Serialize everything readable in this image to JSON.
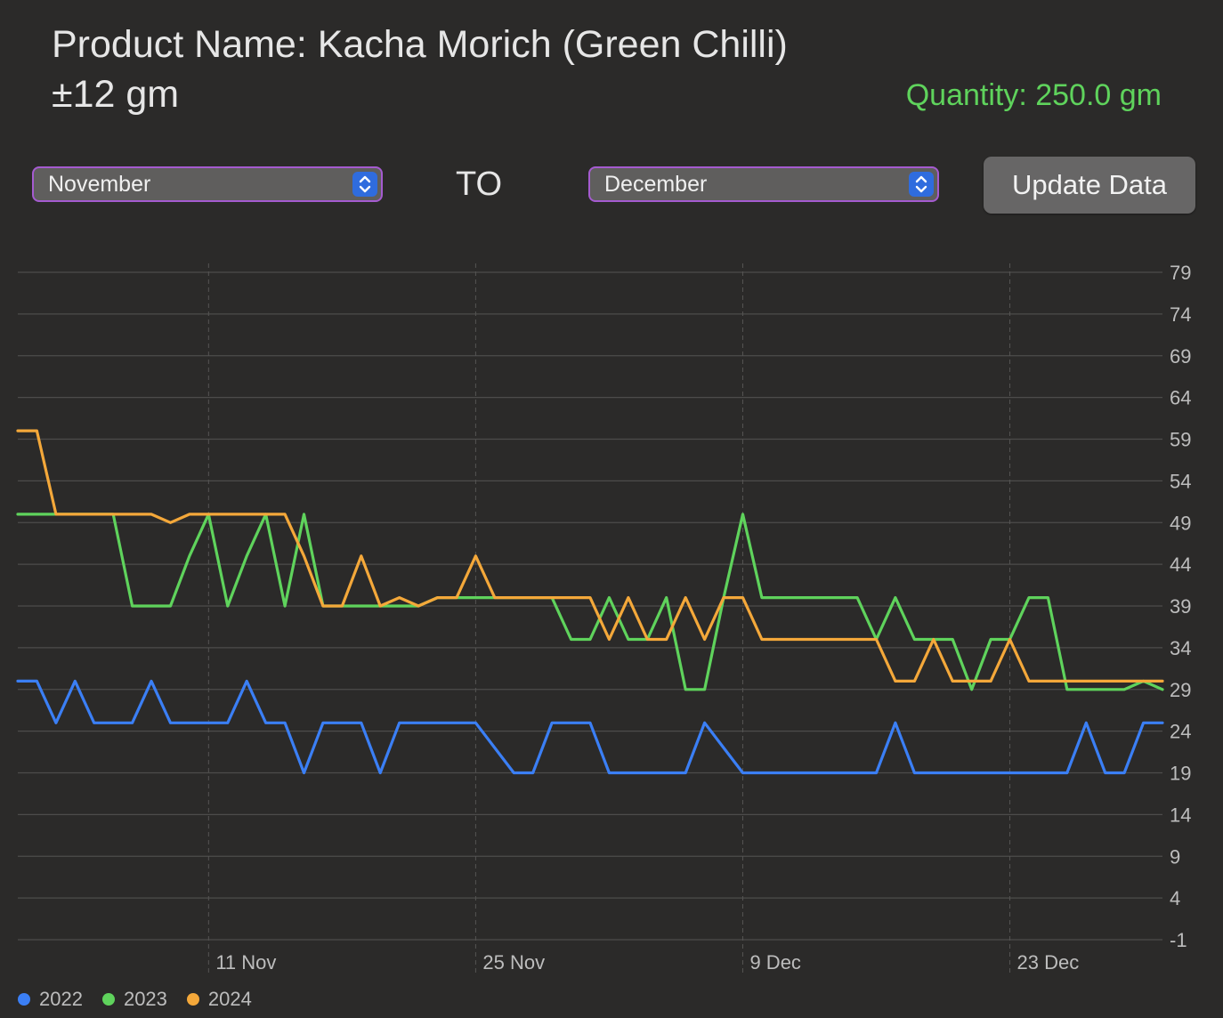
{
  "header": {
    "title_line1": "Product Name: Kacha Morich (Green Chilli)",
    "title_line2": "±12 gm",
    "quantity": "Quantity: 250.0 gm"
  },
  "controls": {
    "from_month": "November",
    "to_label": "TO",
    "to_month": "December",
    "update_button": "Update Data"
  },
  "legend": [
    {
      "label": "2022",
      "color": "#3b7ff5"
    },
    {
      "label": "2023",
      "color": "#5fd35c"
    },
    {
      "label": "2024",
      "color": "#f4a83a"
    }
  ],
  "chart_data": {
    "type": "line",
    "x_tick_labels": [
      "11 Nov",
      "25 Nov",
      "9 Dec",
      "23 Dec"
    ],
    "x_tick_positions": [
      "2024-11-11",
      "2024-11-25",
      "2024-12-09",
      "2024-12-23"
    ],
    "x_start": "2024-11-01",
    "x_end": "2024-12-31",
    "y_ticks": [
      79,
      74,
      69,
      64,
      59,
      54,
      49,
      44,
      39,
      34,
      29,
      24,
      19,
      14,
      9,
      4,
      -1
    ],
    "ylim": [
      -1,
      79
    ],
    "grid": true,
    "legend_position": "bottom-left",
    "series": [
      {
        "name": "2022",
        "color": "#3b7ff5",
        "points": [
          [
            "2024-11-01",
            30
          ],
          [
            "2024-11-02",
            30
          ],
          [
            "2024-11-03",
            25
          ],
          [
            "2024-11-04",
            30
          ],
          [
            "2024-11-05",
            25
          ],
          [
            "2024-11-06",
            25
          ],
          [
            "2024-11-07",
            25
          ],
          [
            "2024-11-08",
            30
          ],
          [
            "2024-11-09",
            25
          ],
          [
            "2024-11-10",
            25
          ],
          [
            "2024-11-11",
            25
          ],
          [
            "2024-11-12",
            25
          ],
          [
            "2024-11-13",
            30
          ],
          [
            "2024-11-14",
            25
          ],
          [
            "2024-11-15",
            25
          ],
          [
            "2024-11-16",
            19
          ],
          [
            "2024-11-17",
            25
          ],
          [
            "2024-11-18",
            25
          ],
          [
            "2024-11-19",
            25
          ],
          [
            "2024-11-20",
            19
          ],
          [
            "2024-11-21",
            25
          ],
          [
            "2024-11-22",
            25
          ],
          [
            "2024-11-23",
            25
          ],
          [
            "2024-11-24",
            25
          ],
          [
            "2024-11-25",
            25
          ],
          [
            "2024-11-26",
            22
          ],
          [
            "2024-11-27",
            19
          ],
          [
            "2024-11-28",
            19
          ],
          [
            "2024-11-29",
            25
          ],
          [
            "2024-11-30",
            25
          ],
          [
            "2024-12-01",
            25
          ],
          [
            "2024-12-02",
            19
          ],
          [
            "2024-12-03",
            19
          ],
          [
            "2024-12-04",
            19
          ],
          [
            "2024-12-05",
            19
          ],
          [
            "2024-12-06",
            19
          ],
          [
            "2024-12-07",
            25
          ],
          [
            "2024-12-08",
            22
          ],
          [
            "2024-12-09",
            19
          ],
          [
            "2024-12-10",
            19
          ],
          [
            "2024-12-11",
            19
          ],
          [
            "2024-12-12",
            19
          ],
          [
            "2024-12-13",
            19
          ],
          [
            "2024-12-14",
            19
          ],
          [
            "2024-12-15",
            19
          ],
          [
            "2024-12-16",
            19
          ],
          [
            "2024-12-17",
            25
          ],
          [
            "2024-12-18",
            19
          ],
          [
            "2024-12-19",
            19
          ],
          [
            "2024-12-20",
            19
          ],
          [
            "2024-12-21",
            19
          ],
          [
            "2024-12-22",
            19
          ],
          [
            "2024-12-23",
            19
          ],
          [
            "2024-12-24",
            19
          ],
          [
            "2024-12-25",
            19
          ],
          [
            "2024-12-26",
            19
          ],
          [
            "2024-12-27",
            25
          ],
          [
            "2024-12-28",
            19
          ],
          [
            "2024-12-29",
            19
          ],
          [
            "2024-12-30",
            25
          ],
          [
            "2024-12-31",
            25
          ]
        ]
      },
      {
        "name": "2023",
        "color": "#5fd35c",
        "points": [
          [
            "2024-11-01",
            50
          ],
          [
            "2024-11-02",
            50
          ],
          [
            "2024-11-03",
            50
          ],
          [
            "2024-11-04",
            50
          ],
          [
            "2024-11-05",
            50
          ],
          [
            "2024-11-06",
            50
          ],
          [
            "2024-11-07",
            39
          ],
          [
            "2024-11-08",
            39
          ],
          [
            "2024-11-09",
            39
          ],
          [
            "2024-11-10",
            45
          ],
          [
            "2024-11-11",
            50
          ],
          [
            "2024-11-12",
            39
          ],
          [
            "2024-11-13",
            45
          ],
          [
            "2024-11-14",
            50
          ],
          [
            "2024-11-15",
            39
          ],
          [
            "2024-11-16",
            50
          ],
          [
            "2024-11-17",
            39
          ],
          [
            "2024-11-18",
            39
          ],
          [
            "2024-11-19",
            39
          ],
          [
            "2024-11-20",
            39
          ],
          [
            "2024-11-21",
            39
          ],
          [
            "2024-11-22",
            39
          ],
          [
            "2024-11-23",
            40
          ],
          [
            "2024-11-24",
            40
          ],
          [
            "2024-11-25",
            40
          ],
          [
            "2024-11-26",
            40
          ],
          [
            "2024-11-27",
            40
          ],
          [
            "2024-11-28",
            40
          ],
          [
            "2024-11-29",
            40
          ],
          [
            "2024-11-30",
            35
          ],
          [
            "2024-12-01",
            35
          ],
          [
            "2024-12-02",
            40
          ],
          [
            "2024-12-03",
            35
          ],
          [
            "2024-12-04",
            35
          ],
          [
            "2024-12-05",
            40
          ],
          [
            "2024-12-06",
            29
          ],
          [
            "2024-12-07",
            29
          ],
          [
            "2024-12-08",
            40
          ],
          [
            "2024-12-09",
            50
          ],
          [
            "2024-12-10",
            40
          ],
          [
            "2024-12-11",
            40
          ],
          [
            "2024-12-12",
            40
          ],
          [
            "2024-12-13",
            40
          ],
          [
            "2024-12-14",
            40
          ],
          [
            "2024-12-15",
            40
          ],
          [
            "2024-12-16",
            35
          ],
          [
            "2024-12-17",
            40
          ],
          [
            "2024-12-18",
            35
          ],
          [
            "2024-12-19",
            35
          ],
          [
            "2024-12-20",
            35
          ],
          [
            "2024-12-21",
            29
          ],
          [
            "2024-12-22",
            35
          ],
          [
            "2024-12-23",
            35
          ],
          [
            "2024-12-24",
            40
          ],
          [
            "2024-12-25",
            40
          ],
          [
            "2024-12-26",
            29
          ],
          [
            "2024-12-27",
            29
          ],
          [
            "2024-12-28",
            29
          ],
          [
            "2024-12-29",
            29
          ],
          [
            "2024-12-30",
            30
          ],
          [
            "2024-12-31",
            29
          ]
        ]
      },
      {
        "name": "2024",
        "color": "#f4a83a",
        "points": [
          [
            "2024-11-01",
            60
          ],
          [
            "2024-11-02",
            60
          ],
          [
            "2024-11-03",
            50
          ],
          [
            "2024-11-04",
            50
          ],
          [
            "2024-11-05",
            50
          ],
          [
            "2024-11-06",
            50
          ],
          [
            "2024-11-07",
            50
          ],
          [
            "2024-11-08",
            50
          ],
          [
            "2024-11-09",
            49
          ],
          [
            "2024-11-10",
            50
          ],
          [
            "2024-11-11",
            50
          ],
          [
            "2024-11-12",
            50
          ],
          [
            "2024-11-13",
            50
          ],
          [
            "2024-11-14",
            50
          ],
          [
            "2024-11-15",
            50
          ],
          [
            "2024-11-16",
            45
          ],
          [
            "2024-11-17",
            39
          ],
          [
            "2024-11-18",
            39
          ],
          [
            "2024-11-19",
            45
          ],
          [
            "2024-11-20",
            39
          ],
          [
            "2024-11-21",
            40
          ],
          [
            "2024-11-22",
            39
          ],
          [
            "2024-11-23",
            40
          ],
          [
            "2024-11-24",
            40
          ],
          [
            "2024-11-25",
            45
          ],
          [
            "2024-11-26",
            40
          ],
          [
            "2024-11-27",
            40
          ],
          [
            "2024-11-28",
            40
          ],
          [
            "2024-11-29",
            40
          ],
          [
            "2024-11-30",
            40
          ],
          [
            "2024-12-01",
            40
          ],
          [
            "2024-12-02",
            35
          ],
          [
            "2024-12-03",
            40
          ],
          [
            "2024-12-04",
            35
          ],
          [
            "2024-12-05",
            35
          ],
          [
            "2024-12-06",
            40
          ],
          [
            "2024-12-07",
            35
          ],
          [
            "2024-12-08",
            40
          ],
          [
            "2024-12-09",
            40
          ],
          [
            "2024-12-10",
            35
          ],
          [
            "2024-12-11",
            35
          ],
          [
            "2024-12-12",
            35
          ],
          [
            "2024-12-13",
            35
          ],
          [
            "2024-12-14",
            35
          ],
          [
            "2024-12-15",
            35
          ],
          [
            "2024-12-16",
            35
          ],
          [
            "2024-12-17",
            30
          ],
          [
            "2024-12-18",
            30
          ],
          [
            "2024-12-19",
            35
          ],
          [
            "2024-12-20",
            30
          ],
          [
            "2024-12-21",
            30
          ],
          [
            "2024-12-22",
            30
          ],
          [
            "2024-12-23",
            35
          ],
          [
            "2024-12-24",
            30
          ],
          [
            "2024-12-25",
            30
          ],
          [
            "2024-12-26",
            30
          ],
          [
            "2024-12-27",
            30
          ],
          [
            "2024-12-28",
            30
          ],
          [
            "2024-12-29",
            30
          ],
          [
            "2024-12-30",
            30
          ],
          [
            "2024-12-31",
            30
          ]
        ]
      }
    ]
  }
}
